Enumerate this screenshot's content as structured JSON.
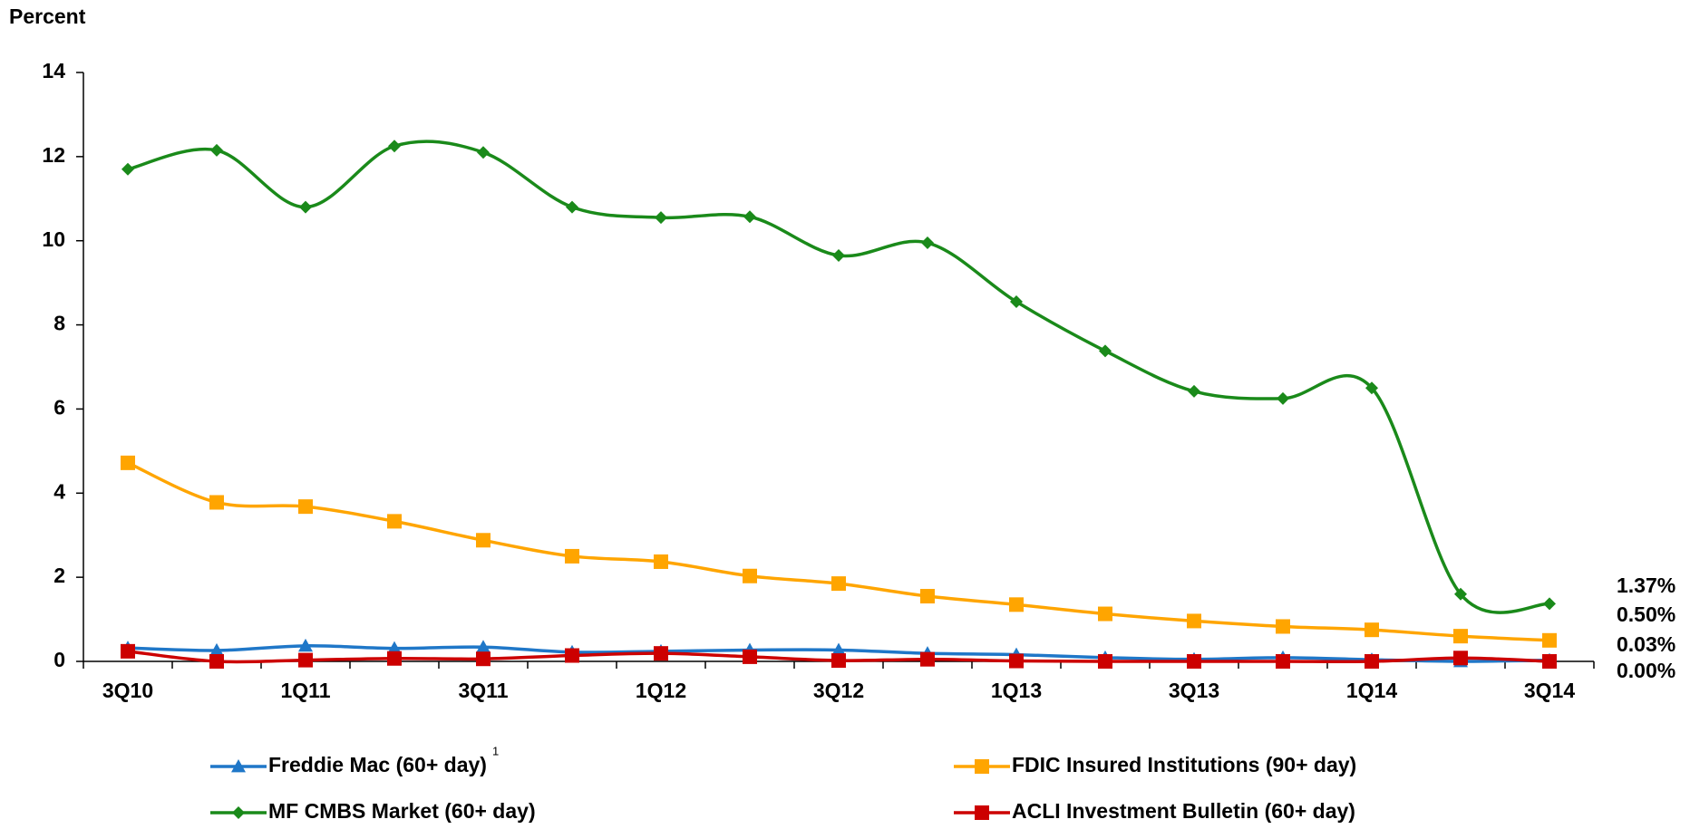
{
  "chart_data": {
    "type": "line",
    "y_label": "Percent",
    "categories": [
      "3Q10",
      null,
      "1Q11",
      null,
      "3Q11",
      null,
      "1Q12",
      null,
      "3Q12",
      null,
      "1Q13",
      null,
      "3Q13",
      null,
      "1Q14",
      null,
      "3Q14"
    ],
    "series": [
      {
        "name": "Freddie Mac (60+ day)",
        "legend_note": "1",
        "color": "#1f77c8",
        "marker": "triangle",
        "end_label": "0.03%",
        "end_label_color": "#4472c4",
        "values": [
          0.32,
          0.26,
          0.37,
          0.31,
          0.34,
          0.22,
          0.24,
          0.27,
          0.27,
          0.19,
          0.16,
          0.09,
          0.05,
          0.09,
          0.04,
          0.0,
          0.03
        ]
      },
      {
        "name": "FDIC Insured Institutions (90+ day)",
        "color": "#ffa500",
        "marker": "square",
        "end_label": "0.50%",
        "end_label_color": "#f5a21e",
        "values": [
          4.72,
          3.78,
          3.68,
          3.33,
          2.88,
          2.5,
          2.37,
          2.03,
          1.85,
          1.55,
          1.35,
          1.13,
          0.96,
          0.83,
          0.75,
          0.6,
          0.5
        ]
      },
      {
        "name": "MF CMBS Market (60+ day)",
        "color": "#1a8a1a",
        "marker": "diamond",
        "end_label": "1.37%",
        "end_label_color": "#1e8c1e",
        "values": [
          11.7,
          12.15,
          10.8,
          12.25,
          12.1,
          10.8,
          10.55,
          10.57,
          9.65,
          9.95,
          8.55,
          7.38,
          6.42,
          6.25,
          6.5,
          1.6,
          1.37
        ]
      },
      {
        "name": "ACLI Investment Bulletin (60+ day)",
        "color": "#cc0000",
        "marker": "square",
        "end_label": "0.00%",
        "end_label_color": "#d40000",
        "values": [
          0.24,
          0.0,
          0.03,
          0.07,
          0.06,
          0.14,
          0.19,
          0.11,
          0.02,
          0.05,
          0.01,
          0.0,
          0.0,
          0.0,
          0.0,
          0.08,
          0.0
        ]
      }
    ],
    "ylim": [
      0,
      14
    ],
    "yticks": [
      0,
      2,
      4,
      6,
      8,
      10,
      12,
      14
    ],
    "grid": false,
    "smooth": true
  }
}
